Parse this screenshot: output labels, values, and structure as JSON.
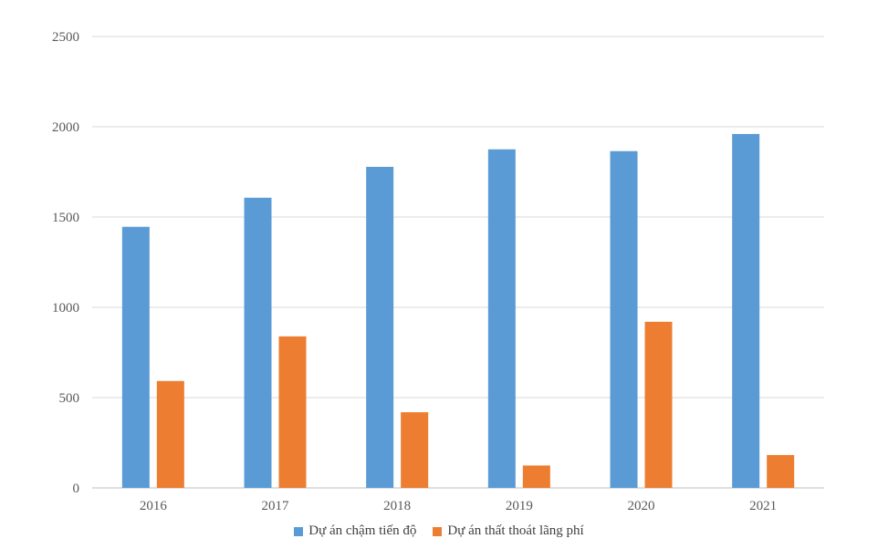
{
  "chart_data": {
    "type": "bar",
    "title": "",
    "xlabel": "",
    "ylabel": "",
    "categories": [
      "2016",
      "2017",
      "2018",
      "2019",
      "2020",
      "2021"
    ],
    "ylim": [
      0,
      2500
    ],
    "yticks": [
      0,
      500,
      1000,
      1500,
      2000,
      2500
    ],
    "grid": true,
    "legend_position": "bottom",
    "series": [
      {
        "name": "Dự án chậm tiến độ",
        "color": "#5B9BD5",
        "values": [
          1446,
          1607,
          1778,
          1875,
          1865,
          1960
        ]
      },
      {
        "name": "Dự án thất thoát lãng phí",
        "color": "#ED7D31",
        "values": [
          592,
          839,
          419,
          124,
          920,
          182
        ]
      }
    ]
  }
}
